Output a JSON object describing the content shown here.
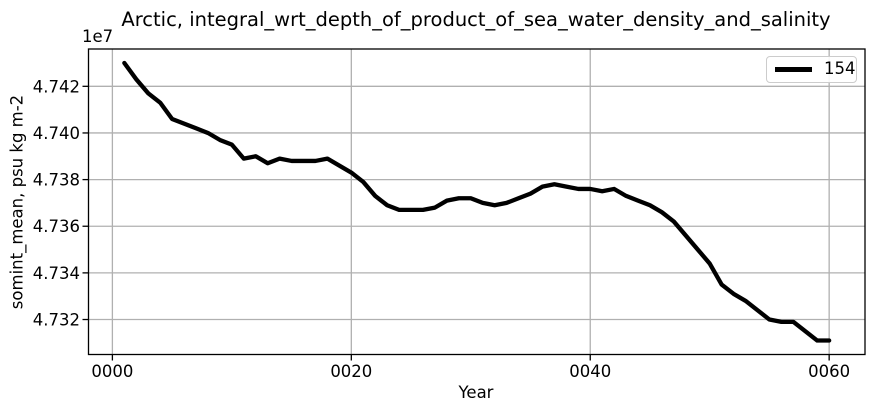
{
  "figure": {
    "title": "Arctic, integral_wrt_depth_of_product_of_sea_water_density_and_salinity",
    "y_offset_label": "1e7",
    "xlabel": "Year",
    "ylabel": "somint_mean, psu kg m-2",
    "legend": {
      "position": "upper right",
      "entries": [
        {
          "label": "154",
          "color": "#000000"
        }
      ]
    }
  },
  "colors": {
    "line": "#000000",
    "grid": "#b0b0b0",
    "spine": "#000000",
    "tick": "#000000",
    "background": "#ffffff",
    "legend_border": "#cccccc",
    "text": "#000000"
  },
  "chart_data": {
    "type": "line",
    "title": "Arctic, integral_wrt_depth_of_product_of_sea_water_density_and_salinity",
    "xlabel": "Year",
    "ylabel": "somint_mean, psu kg m-2",
    "y_unit_multiplier": "1e7",
    "grid": true,
    "legend_position": "upper right",
    "xlim": [
      -2,
      63
    ],
    "ylim": [
      4.7305,
      4.7436
    ],
    "xticks": {
      "values": [
        0,
        20,
        40,
        60
      ],
      "labels": [
        "0000",
        "0020",
        "0040",
        "0060"
      ]
    },
    "yticks": {
      "values": [
        4.732,
        4.734,
        4.736,
        4.738,
        4.74,
        4.742
      ],
      "labels": [
        "4.732",
        "4.734",
        "4.736",
        "4.738",
        "4.740",
        "4.742"
      ]
    },
    "series": [
      {
        "name": "154",
        "color": "#000000",
        "linewidth": 4.3,
        "x": [
          1,
          2,
          3,
          4,
          5,
          6,
          7,
          8,
          9,
          10,
          11,
          12,
          13,
          14,
          15,
          16,
          17,
          18,
          19,
          20,
          21,
          22,
          23,
          24,
          25,
          26,
          27,
          28,
          29,
          30,
          31,
          32,
          33,
          34,
          35,
          36,
          37,
          38,
          39,
          40,
          41,
          42,
          43,
          44,
          45,
          46,
          47,
          48,
          49,
          50,
          51,
          52,
          53,
          54,
          55,
          56,
          57,
          58,
          59,
          60
        ],
        "y": [
          4.743,
          4.7423,
          4.7417,
          4.7413,
          4.7406,
          4.7404,
          4.7402,
          4.74,
          4.7397,
          4.7395,
          4.7389,
          4.739,
          4.7387,
          4.7389,
          4.7388,
          4.7388,
          4.7388,
          4.7389,
          4.7386,
          4.7383,
          4.7379,
          4.7373,
          4.7369,
          4.7367,
          4.7367,
          4.7367,
          4.7368,
          4.7371,
          4.7372,
          4.7372,
          4.737,
          4.7369,
          4.737,
          4.7372,
          4.7374,
          4.7377,
          4.7378,
          4.7377,
          4.7376,
          4.7376,
          4.7375,
          4.7376,
          4.7373,
          4.7371,
          4.7369,
          4.7366,
          4.7362,
          4.7356,
          4.735,
          4.7344,
          4.7335,
          4.7331,
          4.7328,
          4.7324,
          4.732,
          4.7319,
          4.7319,
          4.7315,
          4.7311,
          4.7311
        ]
      }
    ]
  }
}
